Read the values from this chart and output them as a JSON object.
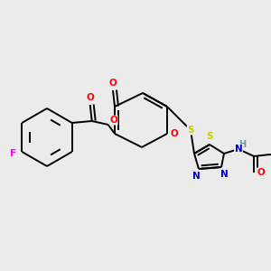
{
  "bg_color": "#ebebeb",
  "bond_color": "#000000",
  "atom_colors": {
    "O": "#ff0000",
    "N": "#0000cc",
    "S": "#cccc00",
    "F": "#ff00ff",
    "H": "#5f9ea0",
    "C": "#000000"
  },
  "figsize": [
    3.0,
    3.0
  ],
  "dpi": 100,
  "xlim": [
    0,
    300
  ],
  "ylim": [
    0,
    300
  ]
}
